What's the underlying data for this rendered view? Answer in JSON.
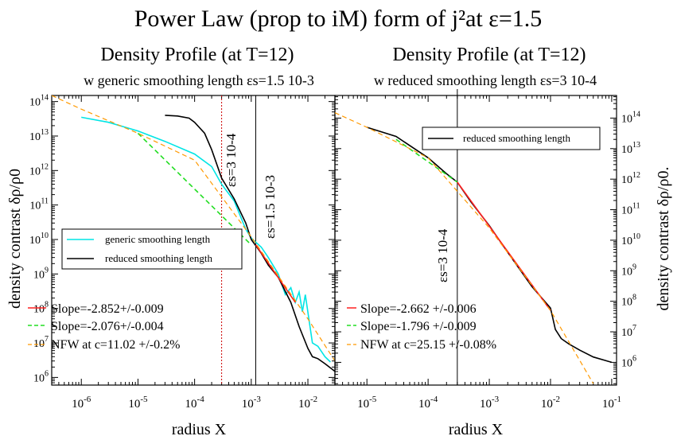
{
  "header": {
    "title": "Power Law (prop to iM) form of j²at ε=1.5"
  },
  "colors": {
    "generic": "#00e5e5",
    "reduced": "#000000",
    "slope_red": "#ff2020",
    "slope_green": "#22dd22",
    "nfw": "#ff9900",
    "vline_dotted": "#cc0000"
  },
  "chart_data": [
    {
      "type": "line",
      "title": "Density Profile (at T=12)",
      "subtitle": "w generic smoothing length εs=1.5 10-3",
      "xlabel": "radius X",
      "ylabel": "density contrast δρ/ρ0",
      "xscale": "log",
      "yscale": "log",
      "xlim": [
        3e-07,
        0.03
      ],
      "ylim": [
        600000,
        150000000000000
      ],
      "x_ticks": [
        "10-6",
        "10-5",
        "10-4",
        "10-3",
        "10-2"
      ],
      "y_ticks": [
        "10^6",
        "10^7",
        "10^8",
        "10^9",
        "10^10",
        "10^11",
        "10^12",
        "10^13",
        "10^14"
      ],
      "annotations": [
        {
          "text": "εs=3 10-4",
          "x": 0.0003
        },
        {
          "text": "εs=1.5 10-3",
          "x": 0.0012
        }
      ],
      "legend_top": [
        "generic smoothing length",
        "reduced smoothing length"
      ],
      "legend_bottom": [
        "Slope=-2.852+/-0.009",
        "Slope=-2.076+/-0.004",
        "NFW at c=11.02  +/-0.2%"
      ],
      "series": [
        {
          "name": "generic smoothing length",
          "x": [
            1e-06,
            3e-06,
            1e-05,
            3e-05,
            0.0001,
            0.0002,
            0.0003,
            0.0005,
            0.0008,
            0.001,
            0.0015,
            0.002,
            0.003,
            0.004,
            0.005,
            0.006,
            0.007,
            0.008,
            0.009,
            0.012,
            0.015,
            0.02,
            0.025
          ],
          "y": [
            35000000000000.0,
            25000000000000.0,
            14000000000000.0,
            7000000000000.0,
            3000000000000.0,
            1300000000000.0,
            400000000000.0,
            130000000000.0,
            20000000000.0,
            11000000000.0,
            6000000000.0,
            3000000000.0,
            1000000000.0,
            250000000.0,
            400000000.0,
            150000000.0,
            300000000.0,
            80000000.0,
            250000000.0,
            10000000.0,
            8000000.0,
            4000000.0,
            2800000.0
          ]
        },
        {
          "name": "reduced smoothing length",
          "x": [
            3e-05,
            5e-05,
            8e-05,
            0.0001,
            0.00015,
            0.0002,
            0.0003,
            0.0005,
            0.0008,
            0.001,
            0.0015,
            0.002,
            0.003,
            0.005,
            0.007,
            0.01,
            0.012,
            0.015,
            0.02,
            0.03
          ],
          "y": [
            40000000000000.0,
            38000000000000.0,
            33000000000000.0,
            25000000000000.0,
            12000000000000.0,
            4000000000000.0,
            600000000000.0,
            150000000000.0,
            30000000000.0,
            10000000000.0,
            4000000000.0,
            1800000000.0,
            800000000.0,
            150000000.0,
            30000000.0,
            7000000.0,
            4000000.0,
            3500000.0,
            2500000.0,
            1500000.0
          ]
        },
        {
          "name": "Slope=-2.852+/-0.009",
          "x": [
            0.0012,
            0.006
          ],
          "y": [
            7000000000.0,
            150000000.0
          ]
        },
        {
          "name": "Slope=-2.076+/-0.004",
          "x": [
            1e-05,
            0.001
          ],
          "y": [
            12000000000000.0,
            7000000000.0
          ]
        },
        {
          "name": "NFW at c=11.02  +/-0.2%",
          "x": [
            3e-07,
            1e-06,
            1e-05,
            0.0001,
            0.001,
            0.01,
            0.03
          ],
          "y": [
            150000000000000.0,
            60000000000000.0,
            12000000000000.0,
            2000000000000.0,
            12000000000.0,
            50000000.0,
            3000000.0
          ]
        }
      ]
    },
    {
      "type": "line",
      "title": "Density Profile (at T=12)",
      "subtitle": "w reduced smoothing length εs=3 10-4",
      "xlabel": "radius X",
      "ylabel": "density contrast δρ/ρ0.",
      "xscale": "log",
      "yscale": "log",
      "xlim": [
        3e-06,
        0.12
      ],
      "ylim": [
        180000,
        550000000000000
      ],
      "x_ticks": [
        "10-5",
        "10-4",
        "10-3",
        "10-2",
        "10-1"
      ],
      "y_ticks": [
        "10^6",
        "10^7",
        "10^8",
        "10^9",
        "10^10",
        "10^11",
        "10^12",
        "10^13",
        "10^14"
      ],
      "annotations": [
        {
          "text": "εs=3 10-4",
          "x": 0.0003
        }
      ],
      "legend_top": [
        "reduced smoothing length"
      ],
      "legend_bottom": [
        "Slope=-2.662 +/-0.006",
        "Slope=-1.796 +/-0.009",
        "NFW at c=25.15 +/-0.08%"
      ],
      "series": [
        {
          "name": "reduced smoothing length",
          "x": [
            1e-05,
            3e-05,
            0.0001,
            0.0002,
            0.0003,
            0.0005,
            0.001,
            0.002,
            0.005,
            0.01,
            0.012,
            0.015,
            0.02,
            0.03,
            0.05,
            0.1
          ],
          "y": [
            50000000000000.0,
            25000000000000.0,
            5000000000000.0,
            1500000000000.0,
            800000000000.0,
            180000000000.0,
            30000000000.0,
            4000000000.0,
            300000000.0,
            60000000.0,
            12000000.0,
            6000000.0,
            4000000.0,
            2500000.0,
            1500000.0,
            1000000.0
          ]
        },
        {
          "name": "Slope=-2.662 +/-0.006",
          "x": [
            0.0003,
            0.01
          ],
          "y": [
            800000000000.0,
            50000000.0
          ]
        },
        {
          "name": "Slope=-1.796 +/-0.009",
          "x": [
            3e-05,
            0.0003
          ],
          "y": [
            20000000000000.0,
            800000000000.0
          ]
        },
        {
          "name": "NFW at c=25.15 +/-0.08%",
          "x": [
            3e-06,
            1e-05,
            0.0001,
            0.001,
            0.01,
            0.05
          ],
          "y": [
            150000000000000.0,
            50000000000000.0,
            5000000000000.0,
            25000000000.0,
            50000000.0,
            200000.0
          ]
        }
      ]
    }
  ]
}
